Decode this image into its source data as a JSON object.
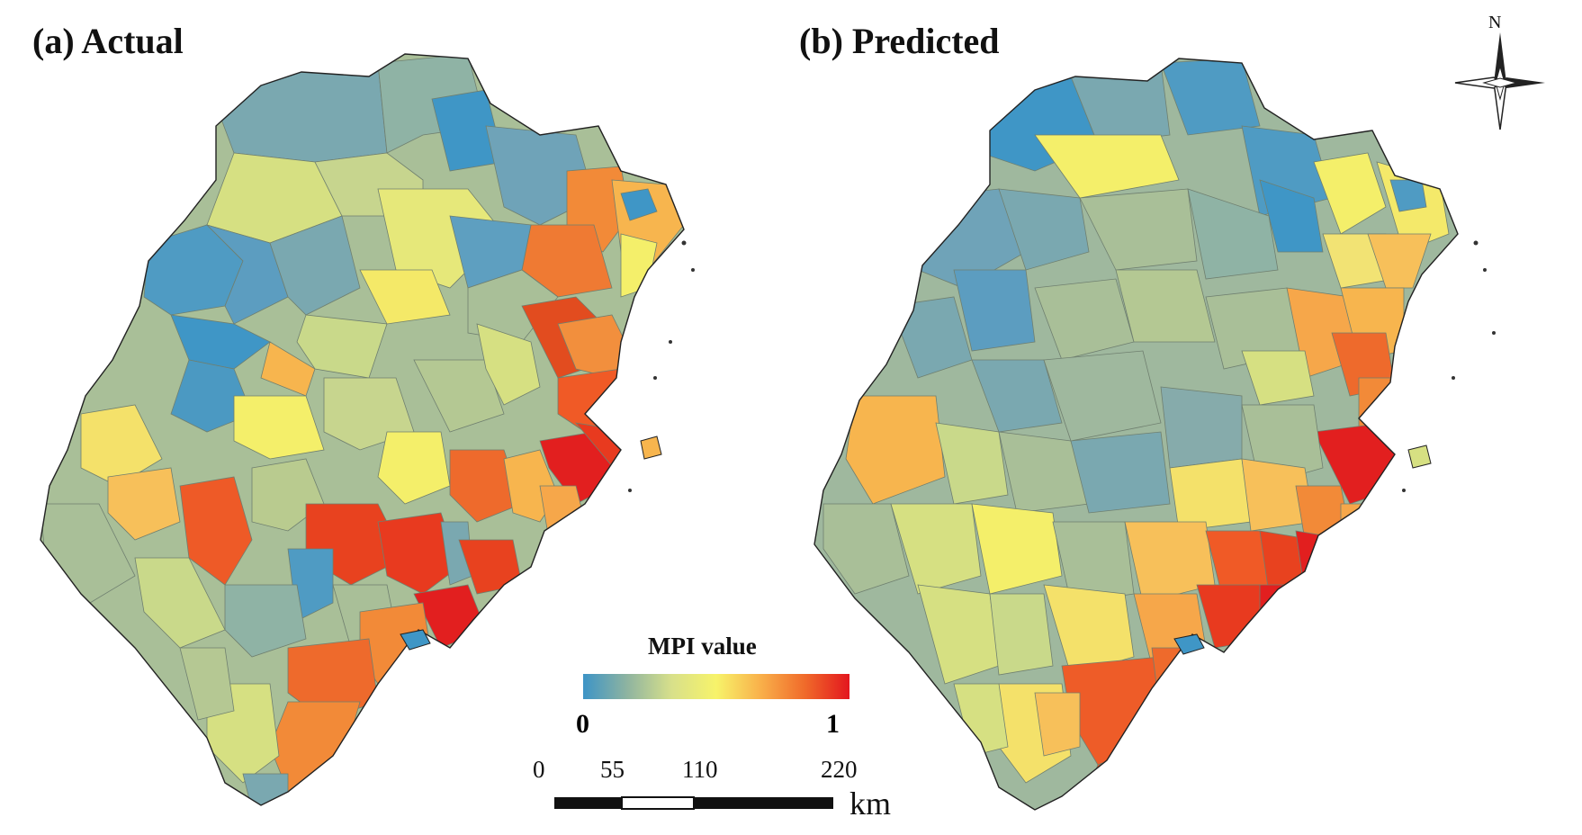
{
  "panels": {
    "a": {
      "label": "(a)  Actual"
    },
    "b": {
      "label": "(b)  Predicted"
    }
  },
  "legend": {
    "title": "MPI value",
    "min_label": "0",
    "max_label": "1",
    "gradient_colors": [
      "#3d94c6",
      "#8fb4a0",
      "#d8e08a",
      "#f7f36a",
      "#f9b04a",
      "#f06a2a",
      "#e3161e"
    ]
  },
  "scale_bar": {
    "ticks": [
      "0",
      "55",
      "110",
      "220"
    ],
    "unit": "km"
  },
  "compass": {
    "north_label": "N"
  },
  "palette": {
    "low": "#3f96c6",
    "low_mid": "#7aa8b0",
    "mid": "#a9bf98",
    "mid_high": "#d6e082",
    "yellow": "#f4ef6a",
    "orange_light": "#f7b54e",
    "orange": "#f28a38",
    "orange_red": "#ee5c28",
    "red": "#e21f1f"
  }
}
